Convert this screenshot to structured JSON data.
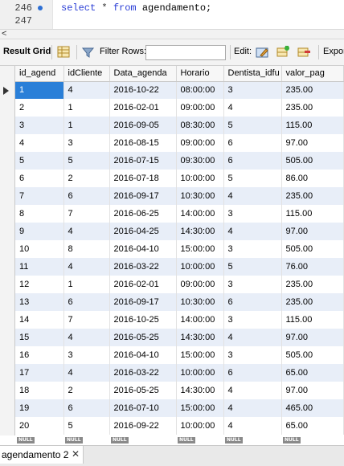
{
  "editor": {
    "lines": [
      {
        "number": "246",
        "has_marker": true,
        "tokens": [
          {
            "text": "select",
            "kind": "kw"
          },
          {
            "text": " * ",
            "kind": "op"
          },
          {
            "text": "from",
            "kind": "kw"
          },
          {
            "text": " agendamento;",
            "kind": "id"
          }
        ]
      },
      {
        "number": "247",
        "has_marker": false,
        "tokens": []
      }
    ]
  },
  "toolbar": {
    "result_grid_label": "Result Grid",
    "filter_rows_label": "Filter Rows:",
    "filter_rows_value": "",
    "edit_label": "Edit:",
    "export_label": "Expor"
  },
  "grid": {
    "columns": [
      "id_agend",
      "idCliente",
      "Data_agenda",
      "Horario",
      "Dentista_idfu",
      "valor_pag"
    ],
    "rows": [
      [
        "1",
        "4",
        "2016-10-22",
        "08:00:00",
        "3",
        "235.00"
      ],
      [
        "2",
        "1",
        "2016-02-01",
        "09:00:00",
        "4",
        "235.00"
      ],
      [
        "3",
        "1",
        "2016-09-05",
        "08:30:00",
        "5",
        "115.00"
      ],
      [
        "4",
        "3",
        "2016-08-15",
        "09:00:00",
        "6",
        "97.00"
      ],
      [
        "5",
        "5",
        "2016-07-15",
        "09:30:00",
        "6",
        "505.00"
      ],
      [
        "6",
        "2",
        "2016-07-18",
        "10:00:00",
        "5",
        "86.00"
      ],
      [
        "7",
        "6",
        "2016-09-17",
        "10:30:00",
        "4",
        "235.00"
      ],
      [
        "8",
        "7",
        "2016-06-25",
        "14:00:00",
        "3",
        "115.00"
      ],
      [
        "9",
        "4",
        "2016-04-25",
        "14:30:00",
        "4",
        "97.00"
      ],
      [
        "10",
        "8",
        "2016-04-10",
        "15:00:00",
        "3",
        "505.00"
      ],
      [
        "11",
        "4",
        "2016-03-22",
        "10:00:00",
        "5",
        "76.00"
      ],
      [
        "12",
        "1",
        "2016-02-01",
        "09:00:00",
        "3",
        "235.00"
      ],
      [
        "13",
        "6",
        "2016-09-17",
        "10:30:00",
        "6",
        "235.00"
      ],
      [
        "14",
        "7",
        "2016-10-25",
        "14:00:00",
        "3",
        "115.00"
      ],
      [
        "15",
        "4",
        "2016-05-25",
        "14:30:00",
        "4",
        "97.00"
      ],
      [
        "16",
        "3",
        "2016-04-10",
        "15:00:00",
        "3",
        "505.00"
      ],
      [
        "17",
        "4",
        "2016-03-22",
        "10:00:00",
        "6",
        "65.00"
      ],
      [
        "18",
        "2",
        "2016-05-25",
        "14:30:00",
        "4",
        "97.00"
      ],
      [
        "19",
        "6",
        "2016-07-10",
        "15:00:00",
        "4",
        "465.00"
      ],
      [
        "20",
        "5",
        "2016-09-22",
        "10:00:00",
        "4",
        "65.00"
      ]
    ],
    "null_label": "NULL",
    "selected_row": 0,
    "selected_col": 0
  },
  "tabs": [
    {
      "label": "agendamento 2",
      "close": "✕"
    }
  ],
  "colors": {
    "selection": "#2a7fd8",
    "alt_row": "#e8eef8",
    "keyword": "#2b3ed6"
  }
}
